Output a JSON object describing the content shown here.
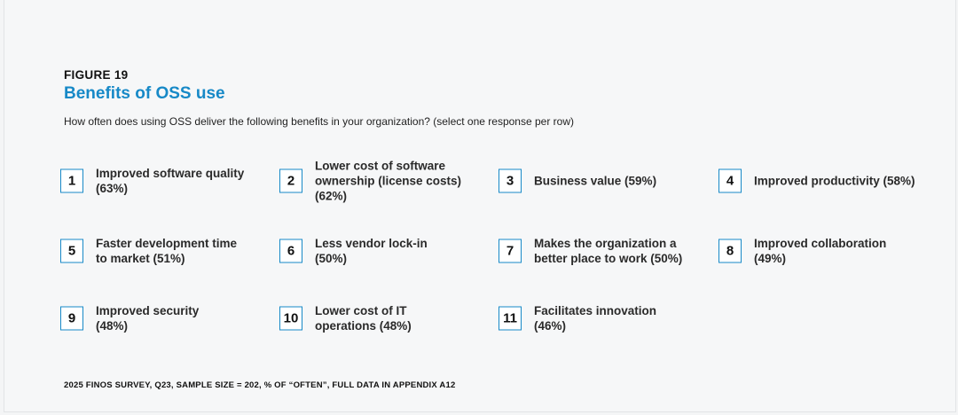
{
  "figure": {
    "label": "FIGURE 19",
    "title": "Benefits of OSS use",
    "question": "How often does using OSS deliver the following benefits in your organization? (select one response per row)"
  },
  "benefits": [
    {
      "number": "1",
      "text": "Improved software quality (63%)"
    },
    {
      "number": "2",
      "text": "Lower cost of software ownership (license costs) (62%)"
    },
    {
      "number": "3",
      "text": "Business value (59%)"
    },
    {
      "number": "4",
      "text": "Improved productivity (58%)"
    },
    {
      "number": "5",
      "text": "Faster development time to market (51%)"
    },
    {
      "number": "6",
      "text": "Less vendor lock-in (50%)"
    },
    {
      "number": "7",
      "text": "Makes the organization a better place to work (50%)"
    },
    {
      "number": "8",
      "text": "Improved collaboration (49%)"
    },
    {
      "number": "9",
      "text": "Improved security (48%)"
    },
    {
      "number": "10",
      "text": "Lower cost of IT operations (48%)"
    },
    {
      "number": "11",
      "text": "Facilitates innovation (46%)"
    }
  ],
  "footnote": "2025 FINOS SURVEY, Q23, SAMPLE SIZE = 202, % OF “OFTEN”, FULL DATA IN APPENDIX A12",
  "colors": {
    "accent": "#1789c7",
    "background": "#f6f7f8"
  }
}
